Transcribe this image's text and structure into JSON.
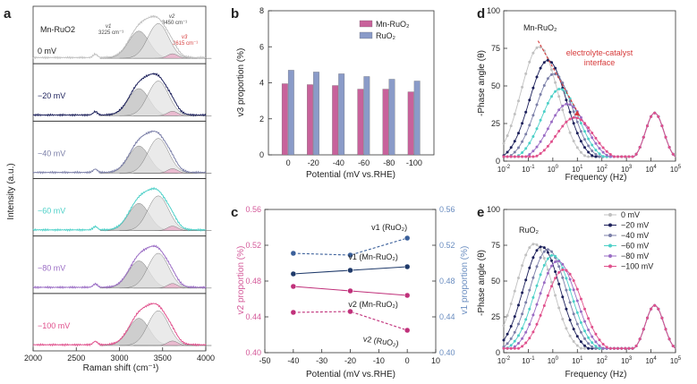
{
  "panel_labels": {
    "a": "a",
    "b": "b",
    "c": "c",
    "d": "d",
    "e": "e"
  },
  "colors": {
    "mnru": "#c8629b",
    "ruo2": "#8a9bc8",
    "red": "#d63a3a",
    "blue_axis": "#6a8dc0",
    "pink_axis": "#d45a9a",
    "v0": "#c0c0c0",
    "v20": "#1b1f5a",
    "v40": "#7b7fa8",
    "v60": "#4dd0c8",
    "v80": "#9a6cc4",
    "v100": "#e0508c"
  },
  "chart_data": [
    {
      "id": "a",
      "type": "line",
      "title": "Mn-RuO2",
      "xlabel": "Raman shift (cm⁻¹)",
      "ylabel": "Intensity (a.u.)",
      "xlim": [
        2000,
        4000
      ],
      "xticks": [
        "2000",
        "2500",
        "3000",
        "3500",
        "4000"
      ],
      "peak_labels": {
        "v1": "v1",
        "v1_pos": "3225 cm⁻¹",
        "v2": "v2",
        "v2_pos": "3450 cm⁻¹",
        "v3": "v3",
        "v3_pos": "3615 cm⁻¹"
      },
      "peak_centers": [
        3225,
        3450,
        3615
      ],
      "series": [
        {
          "name": "0 mV",
          "color_key": "v0"
        },
        {
          "name": "−20 mV",
          "color_key": "v20"
        },
        {
          "name": "−40 mV",
          "color_key": "v40"
        },
        {
          "name": "−60 mV",
          "color_key": "v60"
        },
        {
          "name": "−80 mV",
          "color_key": "v80"
        },
        {
          "name": "−100 mV",
          "color_key": "v100"
        }
      ]
    },
    {
      "id": "b",
      "type": "bar",
      "xlabel": "Potential (mV vs.RHE)",
      "ylabel": "v3 proportion (%)",
      "ylim": [
        0,
        8
      ],
      "yticks": [
        "0",
        "2",
        "4",
        "6",
        "8"
      ],
      "categories": [
        "0",
        "-20",
        "-40",
        "-60",
        "-80",
        "-100"
      ],
      "series": [
        {
          "name": "Mn-RuO₂",
          "color_key": "mnru",
          "values": [
            3.95,
            3.9,
            3.85,
            3.65,
            3.65,
            3.5
          ]
        },
        {
          "name": "RuO₂",
          "color_key": "ruo2",
          "values": [
            4.7,
            4.6,
            4.5,
            4.35,
            4.2,
            4.1
          ]
        }
      ]
    },
    {
      "id": "c",
      "type": "line",
      "xlabel": "Potential (mV vs.RHE)",
      "ylabel_left": "v2 proportion (%)",
      "ylabel_right": "v1 proportion (%)",
      "xlim": [
        -50,
        10
      ],
      "ylim": [
        0.4,
        0.56
      ],
      "xticks": [
        "-50",
        "-40",
        "-30",
        "-20",
        "-10",
        "0",
        "10"
      ],
      "yticks": [
        "0.40",
        "0.44",
        "0.48",
        "0.52",
        "0.56"
      ],
      "x": [
        -40,
        -20,
        0
      ],
      "series": [
        {
          "name": "v1 (RuO₂)",
          "axis": "right",
          "color_key": "blue_axis",
          "dashed": true,
          "values": [
            0.511,
            0.509,
            0.528
          ]
        },
        {
          "name": "v1 (Mn-RuO₂)",
          "axis": "right",
          "color_key": "blue_axis",
          "dashed": false,
          "values": [
            0.488,
            0.492,
            0.496
          ]
        },
        {
          "name": "v2 (Mn-RuO₂)",
          "axis": "left",
          "color_key": "mnru",
          "dashed": false,
          "values": [
            0.474,
            0.469,
            0.464
          ]
        },
        {
          "name": "v2 (RuO₂)",
          "axis": "left",
          "color_key": "mnru",
          "dashed": true,
          "values": [
            0.445,
            0.446,
            0.425
          ]
        }
      ]
    },
    {
      "id": "d",
      "type": "line",
      "title": "Mn-RuO₂",
      "xlabel": "Frequency (Hz)",
      "ylabel": "-Phase angle (θ)",
      "ylim": [
        0,
        100
      ],
      "yticks": [
        "0",
        "25",
        "50",
        "75",
        "100"
      ],
      "xlim_log10": [
        -2,
        5
      ],
      "annotation": "electrolyte-catalyst interface",
      "series": [
        {
          "name": "0 mV",
          "color_key": "v0",
          "peak_deg": 76,
          "peak_log_f": -0.55
        },
        {
          "name": "−20 mV",
          "color_key": "v20",
          "peak_deg": 67,
          "peak_log_f": -0.2
        },
        {
          "name": "−40 mV",
          "color_key": "v40",
          "peak_deg": 58,
          "peak_log_f": 0.05
        },
        {
          "name": "−60 mV",
          "color_key": "v60",
          "peak_deg": 48,
          "peak_log_f": 0.3
        },
        {
          "name": "−80 mV",
          "color_key": "v80",
          "peak_deg": 38,
          "peak_log_f": 0.6
        },
        {
          "name": "−100 mV",
          "color_key": "v100",
          "peak_deg": 29,
          "peak_log_f": 0.9
        }
      ],
      "second_peak": {
        "deg": 32,
        "log_f": 4.15
      }
    },
    {
      "id": "e",
      "type": "line",
      "title": "RuO₂",
      "xlabel": "Frequency (Hz)",
      "ylabel": "-Phase angle (θ)",
      "ylim": [
        0,
        100
      ],
      "yticks": [
        "0",
        "25",
        "50",
        "75",
        "100"
      ],
      "xlim_log10": [
        -2,
        5
      ],
      "series": [
        {
          "name": "0 mV",
          "color_key": "v0",
          "peak_deg": 76,
          "peak_log_f": -0.75
        },
        {
          "name": "−20 mV",
          "color_key": "v20",
          "peak_deg": 74,
          "peak_log_f": -0.45
        },
        {
          "name": "−40 mV",
          "color_key": "v40",
          "peak_deg": 72,
          "peak_log_f": -0.2
        },
        {
          "name": "−60 mV",
          "color_key": "v60",
          "peak_deg": 68,
          "peak_log_f": 0.0
        },
        {
          "name": "−80 mV",
          "color_key": "v80",
          "peak_deg": 64,
          "peak_log_f": 0.2
        },
        {
          "name": "−100 mV",
          "color_key": "v100",
          "peak_deg": 58,
          "peak_log_f": 0.45
        }
      ],
      "second_peak": {
        "deg": 33,
        "log_f": 4.15
      }
    }
  ]
}
